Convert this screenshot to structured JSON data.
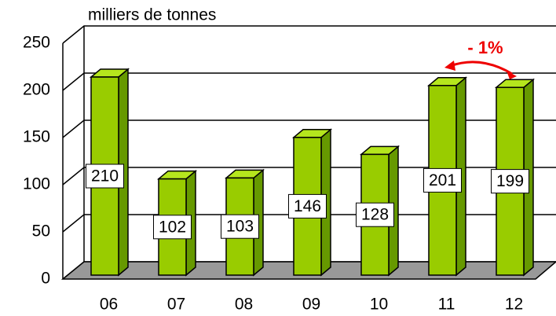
{
  "chart_data": {
    "type": "bar",
    "y_label": "milliers de tonnes",
    "categories": [
      "06",
      "07",
      "08",
      "09",
      "10",
      "11",
      "12"
    ],
    "values": [
      210,
      102,
      103,
      146,
      128,
      201,
      199
    ],
    "color": "#99cc00",
    "ylim": [
      0,
      250
    ],
    "yticks": [
      0,
      50,
      100,
      150,
      200,
      250
    ],
    "grid": true,
    "annotation": "- 1%"
  }
}
